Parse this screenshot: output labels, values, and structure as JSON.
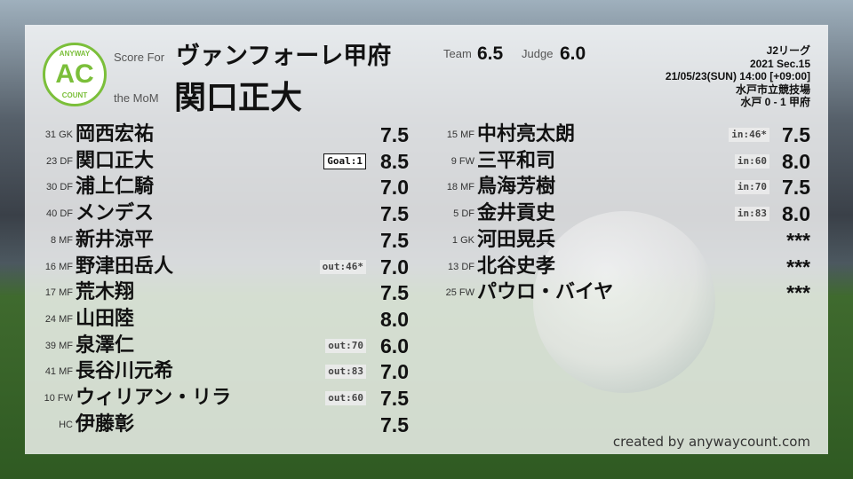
{
  "header": {
    "logo_text": "AC",
    "logo_top": "ANYWAY",
    "logo_bottom": "COUNT",
    "score_for_label": "Score For",
    "team_name": "ヴァンフォーレ甲府",
    "mom_label": "the MoM",
    "mom_name": "関口正大",
    "team_label": "Team",
    "team_score": "6.5",
    "judge_label": "Judge",
    "judge_score": "6.0"
  },
  "match": {
    "league": "J2リーグ",
    "section": "2021 Sec.15",
    "datetime": "21/05/23(SUN) 14:00 [+09:00]",
    "venue": "水戸市立競技場",
    "result": "水戸 0 - 1 甲府"
  },
  "left_players": [
    {
      "num": "31 GK",
      "name": "岡西宏祐",
      "tag": "",
      "score": "7.5"
    },
    {
      "num": "23 DF",
      "name": "関口正大",
      "tag": "Goal:1",
      "score": "8.5"
    },
    {
      "num": "30 DF",
      "name": "浦上仁騎",
      "tag": "",
      "score": "7.0"
    },
    {
      "num": "40 DF",
      "name": "メンデス",
      "tag": "",
      "score": "7.5"
    },
    {
      "num": "8 MF",
      "name": "新井涼平",
      "tag": "",
      "score": "7.5"
    },
    {
      "num": "16 MF",
      "name": "野津田岳人",
      "tag": "out:46*",
      "score": "7.0"
    },
    {
      "num": "17 MF",
      "name": "荒木翔",
      "tag": "",
      "score": "7.5"
    },
    {
      "num": "24 MF",
      "name": "山田陸",
      "tag": "",
      "score": "8.0"
    },
    {
      "num": "39 MF",
      "name": "泉澤仁",
      "tag": "out:70",
      "score": "6.0"
    },
    {
      "num": "41 MF",
      "name": "長谷川元希",
      "tag": "out:83",
      "score": "7.0"
    },
    {
      "num": "10 FW",
      "name": "ウィリアン・リラ",
      "tag": "out:60",
      "score": "7.5"
    },
    {
      "num": "HC",
      "name": "伊藤彰",
      "tag": "",
      "score": "7.5"
    }
  ],
  "right_players": [
    {
      "num": "15 MF",
      "name": "中村亮太朗",
      "tag": "in:46*",
      "score": "7.5"
    },
    {
      "num": "9 FW",
      "name": "三平和司",
      "tag": "in:60",
      "score": "8.0"
    },
    {
      "num": "18 MF",
      "name": "鳥海芳樹",
      "tag": "in:70",
      "score": "7.5"
    },
    {
      "num": "5 DF",
      "name": "金井貢史",
      "tag": "in:83",
      "score": "8.0"
    },
    {
      "num": "1 GK",
      "name": "河田晃兵",
      "tag": "",
      "score": "***"
    },
    {
      "num": "13 DF",
      "name": "北谷史孝",
      "tag": "",
      "score": "***"
    },
    {
      "num": "25 FW",
      "name": "パウロ・バイヤ",
      "tag": "",
      "score": "***"
    }
  ],
  "credit": "created by anywaycount.com",
  "colors": {
    "logo_green": "#7bbf3a"
  }
}
